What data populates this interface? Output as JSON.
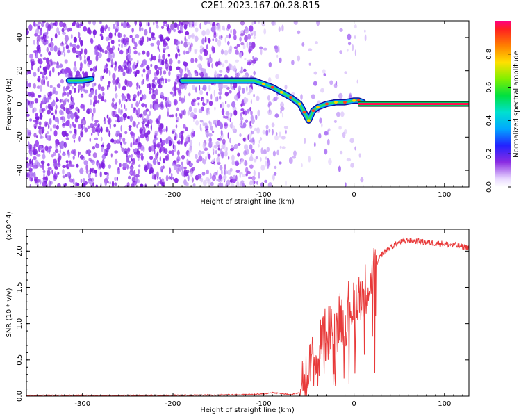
{
  "title": "C2E1.2023.167.00.28.R15",
  "chart_data": [
    {
      "type": "heatmap",
      "name": "spectrogram",
      "xlabel": "Height of straight line (km)",
      "ylabel": "Frequency (Hz)",
      "xlim": [
        -362,
        127
      ],
      "ylim": [
        -50,
        50
      ],
      "x_ticks": [
        -300,
        -200,
        -100,
        0,
        100
      ],
      "y_ticks": [
        -40,
        -20,
        0,
        20,
        40
      ],
      "grid": false,
      "colorbar": {
        "label": "Normalized spectral amplitude",
        "range": [
          0,
          1
        ],
        "ticks": [
          "0.0",
          "0.2",
          "0.4",
          "0.6",
          "0.8"
        ]
      },
      "ridge": {
        "x": [
          -315,
          -300,
          -290,
          -190,
          -170,
          -150,
          -130,
          -110,
          -100,
          -90,
          -80,
          -70,
          -60,
          -55,
          -50,
          -45,
          -40,
          -30,
          -20,
          -10,
          0,
          5,
          10,
          127
        ],
        "y": [
          14,
          14,
          15,
          14,
          14,
          14,
          14,
          14,
          12,
          10,
          7,
          4,
          0,
          -5,
          -10,
          -4,
          -2,
          0,
          1,
          1,
          2,
          2,
          1,
          0
        ]
      }
    },
    {
      "type": "line",
      "name": "snr",
      "xlabel": "Height of straight line (km)",
      "ylabel": "SNR (10 * v/v)",
      "multiplier": "(x10^4)",
      "xlim": [
        -362,
        127
      ],
      "ylim": [
        0,
        2.3
      ],
      "x_ticks": [
        -300,
        -200,
        -100,
        0,
        100
      ],
      "y_ticks": [
        "0.0",
        "0.5",
        "1.0",
        "1.5",
        "2.0"
      ],
      "grid": false,
      "series": [
        {
          "color": "#e83a3a",
          "x": [
            -362,
            -300,
            -200,
            -120,
            -100,
            -90,
            -70,
            -60,
            -55,
            -50,
            -45,
            -40,
            -35,
            -30,
            -25,
            -20,
            -15,
            -10,
            -5,
            0,
            5,
            10,
            15,
            20,
            25,
            30,
            40,
            50,
            60,
            80,
            100,
            127
          ],
          "y": [
            0.01,
            0.01,
            0.01,
            0.02,
            0.03,
            0.05,
            0.02,
            0.05,
            0.15,
            0.35,
            0.5,
            0.4,
            0.9,
            0.8,
            1.0,
            0.9,
            1.1,
            1.0,
            1.3,
            1.2,
            1.45,
            1.4,
            1.55,
            1.6,
            1.8,
            1.95,
            2.05,
            2.12,
            2.15,
            2.12,
            2.1,
            2.05
          ]
        }
      ]
    }
  ]
}
